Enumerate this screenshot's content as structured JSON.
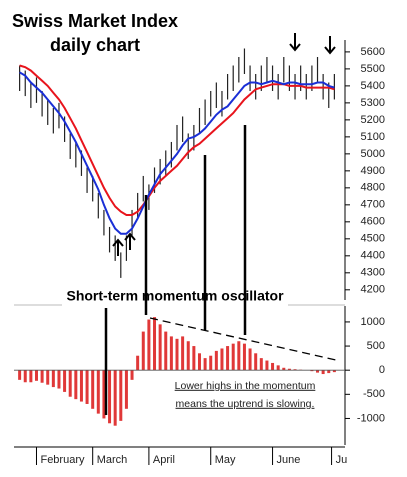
{
  "chart_data": [
    {
      "type": "range-bar",
      "title": "Swiss Market Index",
      "subtitle": "daily chart",
      "x": [
        0,
        2,
        4,
        6,
        8,
        10,
        12,
        14,
        16,
        18,
        20,
        22,
        24,
        26,
        28,
        30,
        32,
        34,
        36,
        38,
        40,
        42,
        44,
        46,
        48,
        50,
        52,
        54,
        56,
        58,
        60,
        62,
        64,
        66,
        68,
        70,
        72,
        74,
        76,
        78,
        80,
        82,
        84,
        86,
        88,
        90,
        92,
        94,
        96,
        98,
        100,
        102,
        104,
        106,
        108,
        110,
        112
      ],
      "high": [
        5520,
        5490,
        5420,
        5450,
        5370,
        5320,
        5270,
        5300,
        5220,
        5120,
        5070,
        5020,
        4920,
        4870,
        4770,
        4670,
        4570,
        4520,
        4420,
        4520,
        4670,
        4770,
        4870,
        4820,
        4920,
        4970,
        5020,
        5070,
        5170,
        5220,
        5120,
        5170,
        5270,
        5320,
        5370,
        5420,
        5370,
        5470,
        5520,
        5570,
        5620,
        5520,
        5470,
        5520,
        5570,
        5520,
        5470,
        5570,
        5520,
        5470,
        5520,
        5470,
        5520,
        5570,
        5470,
        5420,
        5470
      ],
      "low": [
        5370,
        5340,
        5270,
        5300,
        5220,
        5170,
        5120,
        5150,
        5070,
        4970,
        4920,
        4870,
        4770,
        4720,
        4620,
        4520,
        4420,
        4370,
        4270,
        4370,
        4520,
        4620,
        4720,
        4670,
        4770,
        4820,
        4870,
        4920,
        5020,
        5070,
        4970,
        5020,
        5120,
        5170,
        5220,
        5270,
        5220,
        5320,
        5370,
        5420,
        5470,
        5370,
        5320,
        5370,
        5420,
        5370,
        5320,
        5420,
        5370,
        5320,
        5370,
        5320,
        5370,
        5420,
        5320,
        5270,
        5320
      ],
      "bar_color": "#222222",
      "series": [
        {
          "color": "#e8141c",
          "values": [
            5520,
            5510,
            5490,
            5460,
            5430,
            5400,
            5360,
            5320,
            5270,
            5210,
            5150,
            5080,
            5010,
            4940,
            4870,
            4800,
            4740,
            4690,
            4660,
            4640,
            4640,
            4660,
            4700,
            4750,
            4800,
            4840,
            4870,
            4900,
            4930,
            4970,
            5010,
            5040,
            5060,
            5090,
            5120,
            5150,
            5180,
            5210,
            5240,
            5280,
            5320,
            5350,
            5380,
            5390,
            5400,
            5410,
            5410,
            5410,
            5400,
            5400,
            5400,
            5390,
            5390,
            5390,
            5390,
            5390,
            5380
          ]
        },
        {
          "color": "#1a2fd6",
          "values": [
            5480,
            5460,
            5420,
            5390,
            5360,
            5320,
            5280,
            5240,
            5190,
            5130,
            5070,
            5000,
            4930,
            4860,
            4790,
            4700,
            4620,
            4560,
            4530,
            4530,
            4560,
            4620,
            4690,
            4760,
            4820,
            4880,
            4920,
            4960,
            5000,
            5050,
            5090,
            5100,
            5120,
            5150,
            5190,
            5230,
            5260,
            5280,
            5320,
            5360,
            5400,
            5420,
            5420,
            5410,
            5420,
            5430,
            5420,
            5410,
            5420,
            5420,
            5410,
            5410,
            5410,
            5420,
            5420,
            5400,
            5390
          ]
        }
      ],
      "xlim": [
        -2,
        114
      ],
      "ylim": [
        4140,
        5670
      ],
      "yticks": [
        4200,
        4300,
        4400,
        4500,
        4600,
        4700,
        4800,
        4900,
        5000,
        5100,
        5200,
        5300,
        5400,
        5500,
        5600
      ]
    },
    {
      "type": "bar",
      "title": "Short-term momentum oscillator",
      "color": "#e03838",
      "values": [
        -200,
        -250,
        -250,
        -220,
        -260,
        -300,
        -350,
        -380,
        -450,
        -550,
        -600,
        -650,
        -700,
        -800,
        -900,
        -1000,
        -1100,
        -1150,
        -1050,
        -800,
        -200,
        300,
        800,
        1050,
        1100,
        950,
        800,
        700,
        650,
        700,
        600,
        500,
        350,
        250,
        300,
        400,
        450,
        500,
        550,
        600,
        550,
        450,
        350,
        250,
        200,
        150,
        100,
        50,
        30,
        20,
        10,
        0,
        -20,
        -50,
        -80,
        -60,
        -40
      ],
      "xlim": [
        -2,
        114
      ],
      "ylim": [
        -1550,
        1330
      ],
      "yticks": [
        -1000,
        -500,
        0,
        500,
        1000
      ],
      "xticks": [
        {
          "value": 6,
          "label": "February"
        },
        {
          "value": 26,
          "label": "March"
        },
        {
          "value": 46,
          "label": "April"
        },
        {
          "value": 68,
          "label": "May"
        },
        {
          "value": 90,
          "label": "June"
        },
        {
          "value": 111,
          "label": "Ju"
        }
      ],
      "annotations": [
        "Lower highs in the momentum",
        "means the uptrend is slowing."
      ]
    }
  ]
}
